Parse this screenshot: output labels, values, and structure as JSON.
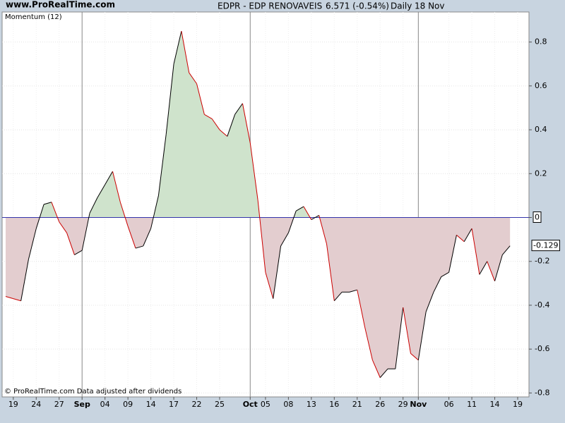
{
  "header": {
    "site": "www.ProRealTime.com",
    "symbol": "EDPR - EDP RENOVAVEIS",
    "price": "6.571 (-0.54%)",
    "period": "Daily",
    "date": "18 Nov"
  },
  "footer": "© ProRealTime.com  Data adjusted after dividends",
  "chart_data": {
    "type": "line",
    "title": "Momentum (12)",
    "categories": [
      null,
      "19",
      null,
      null,
      "24",
      null,
      null,
      "27",
      null,
      null,
      "Sep",
      null,
      null,
      "04",
      null,
      null,
      "09",
      null,
      null,
      "14",
      null,
      null,
      "17",
      null,
      null,
      "22",
      null,
      null,
      "25",
      null,
      null,
      null,
      "Oct",
      null,
      "05",
      null,
      null,
      "08",
      null,
      null,
      "13",
      null,
      null,
      "16",
      null,
      null,
      "21",
      null,
      null,
      "26",
      null,
      null,
      "29",
      null,
      "Nov",
      null,
      null,
      null,
      "06",
      null,
      null,
      "11",
      null,
      null,
      "14",
      null,
      null,
      "19"
    ],
    "series": [
      {
        "name": "Momentum (12)",
        "color": "#cc0000",
        "values": [
          -0.36,
          -0.37,
          -0.38,
          -0.19,
          -0.05,
          0.06,
          0.07,
          -0.02,
          -0.07,
          -0.17,
          -0.15,
          0.02,
          0.09,
          0.15,
          0.21,
          0.07,
          -0.04,
          -0.14,
          -0.13,
          -0.05,
          0.1,
          0.38,
          0.7,
          0.85,
          0.66,
          0.61,
          0.47,
          0.45,
          0.4,
          0.37,
          0.47,
          0.52,
          0.34,
          0.08,
          -0.25,
          -0.37,
          -0.13,
          -0.07,
          0.03,
          0.05,
          -0.01,
          0.01,
          -0.12,
          -0.38,
          -0.34,
          -0.34,
          -0.33,
          -0.5,
          -0.65,
          -0.73,
          -0.69,
          -0.69,
          -0.41,
          -0.62,
          -0.65,
          -0.43,
          -0.34,
          -0.27,
          -0.25,
          -0.08,
          -0.11,
          -0.05,
          -0.26,
          -0.2,
          -0.29,
          -0.17,
          -0.129,
          null
        ]
      }
    ],
    "up_color": "#000000",
    "positive_fill": "#cfe3cc",
    "negative_fill": "#e3cdcf",
    "zero_line_color": "#3333aa",
    "ylim": [
      -0.818,
      0.937
    ],
    "yticks": [
      -0.8,
      -0.6,
      -0.4,
      -0.2,
      0,
      0.2,
      0.4,
      0.6,
      0.8
    ],
    "grid": true
  }
}
